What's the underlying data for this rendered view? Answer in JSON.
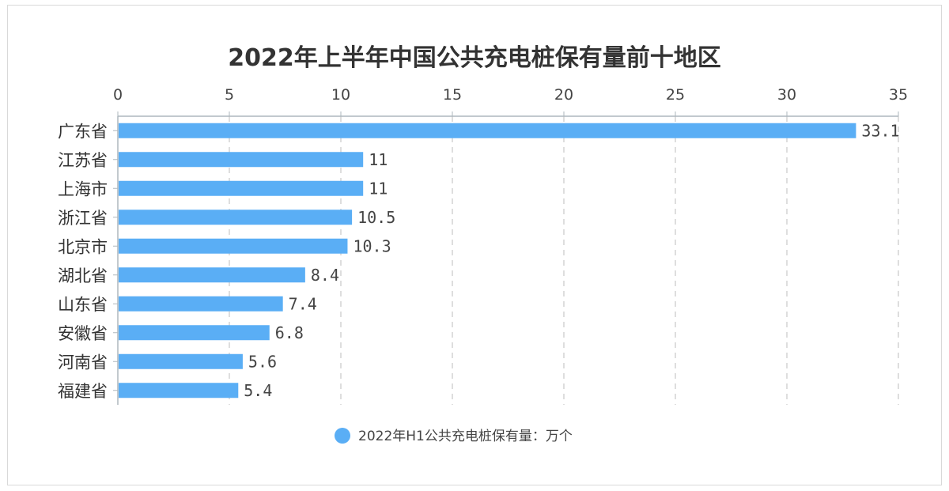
{
  "chart_data": {
    "type": "bar",
    "orientation": "horizontal",
    "title": "2022年上半年中国公共充电桩保有量前十地区",
    "categories": [
      "广东省",
      "江苏省",
      "上海市",
      "浙江省",
      "北京市",
      "湖北省",
      "山东省",
      "安徽省",
      "河南省",
      "福建省"
    ],
    "series": [
      {
        "name": "2022年H1公共充电桩保有量：万个",
        "values": [
          33.1,
          11,
          11,
          10.5,
          10.3,
          8.4,
          7.4,
          6.8,
          5.6,
          5.4
        ]
      }
    ],
    "data_labels": [
      "33.1",
      "11",
      "11",
      "10.5",
      "10.3",
      "8.4",
      "7.4",
      "6.8",
      "5.6",
      "5.4"
    ],
    "xlim": [
      0,
      35
    ],
    "x_ticks": [
      0,
      5,
      10,
      15,
      20,
      25,
      30,
      35
    ],
    "x_tick_labels": [
      "0",
      "5",
      "10",
      "15",
      "20",
      "25",
      "30",
      "35"
    ],
    "x_axis_position": "top",
    "grid": true,
    "legend_position": "bottom",
    "colors": {
      "bar": "#5aaef5",
      "grid": "#c8c8c8",
      "axis": "#aeb7bd"
    }
  }
}
